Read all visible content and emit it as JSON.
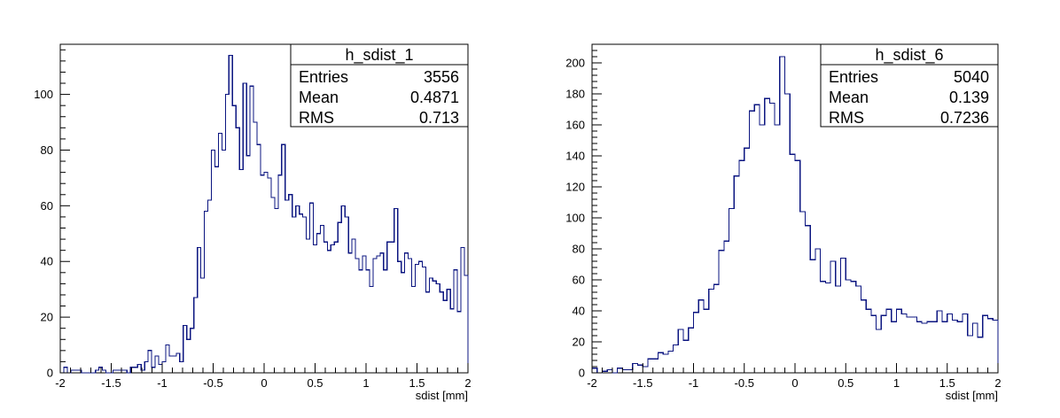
{
  "chart_data": [
    {
      "type": "histogram",
      "title": "h_sdist_1",
      "xlabel": "sdist [mm]",
      "ylabel": "",
      "xlim": [
        -2,
        2
      ],
      "ylim": [
        0,
        118
      ],
      "x_ticks": [
        "-2",
        "-1.5",
        "-1",
        "-0.5",
        "0",
        "0.5",
        "1",
        "1.5",
        "2"
      ],
      "y_ticks": [
        "0",
        "20",
        "40",
        "60",
        "80",
        "100"
      ],
      "bins": 116,
      "stats": {
        "entries_label": "Entries",
        "entries": "3556",
        "mean_label": "Mean",
        "mean": "0.4871",
        "rms_label": "RMS",
        "rms": "0.713"
      },
      "values": [
        0,
        2,
        0,
        1,
        1,
        1,
        0,
        0,
        0,
        0,
        1,
        2,
        1,
        0,
        0,
        1,
        1,
        1,
        1,
        0,
        2,
        2,
        3,
        1,
        4,
        8,
        2,
        6,
        3,
        4,
        10,
        6,
        6,
        7,
        4,
        17,
        12,
        16,
        27,
        45,
        34,
        58,
        62,
        80,
        74,
        86,
        80,
        100,
        114,
        96,
        88,
        73,
        104,
        78,
        103,
        90,
        82,
        71,
        72,
        70,
        63,
        59,
        71,
        82,
        62,
        64,
        56,
        60,
        57,
        56,
        48,
        61,
        46,
        50,
        53,
        47,
        44,
        46,
        47,
        54,
        60,
        56,
        43,
        48,
        41,
        37,
        42,
        37,
        31,
        41,
        42,
        43,
        37,
        47,
        47,
        59,
        40,
        36,
        43,
        41,
        31,
        39,
        40,
        38,
        29,
        34,
        33,
        32,
        29,
        26,
        30,
        23,
        37,
        22,
        45,
        35
      ]
    },
    {
      "type": "histogram",
      "title": "h_sdist_6",
      "xlabel": "sdist [mm]",
      "ylabel": "",
      "xlim": [
        -2,
        2
      ],
      "ylim": [
        0,
        212
      ],
      "x_ticks": [
        "-2",
        "-1.5",
        "-1",
        "-0.5",
        "0",
        "0.5",
        "1",
        "1.5",
        "2"
      ],
      "y_ticks": [
        "0",
        "20",
        "40",
        "60",
        "80",
        "100",
        "120",
        "140",
        "160",
        "180",
        "200"
      ],
      "bins": 80,
      "stats": {
        "entries_label": "Entries",
        "entries": "5040",
        "mean_label": "Mean",
        "mean": "0.139",
        "rms_label": "RMS",
        "rms": "0.7236"
      },
      "values": [
        3,
        0,
        1,
        2,
        0,
        3,
        2,
        2,
        6,
        5,
        4,
        9,
        9,
        13,
        12,
        14,
        18,
        28,
        21,
        29,
        39,
        47,
        41,
        54,
        57,
        79,
        85,
        106,
        127,
        137,
        145,
        169,
        173,
        160,
        177,
        174,
        160,
        204,
        180,
        141,
        137,
        104,
        95,
        73,
        80,
        59,
        58,
        72,
        56,
        74,
        60,
        59,
        56,
        47,
        41,
        37,
        28,
        37,
        41,
        33,
        41,
        38,
        36,
        36,
        33,
        32,
        33,
        33,
        40,
        33,
        38,
        34,
        33,
        38,
        24,
        32,
        23,
        37,
        35,
        34
      ]
    }
  ]
}
